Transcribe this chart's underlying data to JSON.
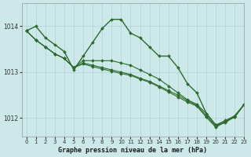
{
  "title": "Graphe pression niveau de la mer (hPa)",
  "bg_color": "#cce8e8",
  "grid_color": "#aad4d4",
  "line_color": "#2d6a2d",
  "xlim": [
    -0.5,
    23
  ],
  "ylim": [
    1011.6,
    1014.5
  ],
  "yticks": [
    1012,
    1013,
    1014
  ],
  "xticks": [
    0,
    1,
    2,
    3,
    4,
    5,
    6,
    7,
    8,
    9,
    10,
    11,
    12,
    13,
    14,
    15,
    16,
    17,
    18,
    19,
    20,
    21,
    22,
    23
  ],
  "series": [
    [
      1013.9,
      1014.0,
      1013.75,
      1013.6,
      1013.45,
      1013.05,
      1013.35,
      1013.65,
      1013.95,
      1014.15,
      1014.15,
      1013.85,
      1013.75,
      1013.55,
      1013.35,
      1013.35,
      1013.1,
      1012.75,
      1012.55,
      1012.1,
      1011.85,
      1011.9,
      1012.05,
      1012.3
    ],
    [
      1013.9,
      1013.7,
      1013.55,
      1013.4,
      1013.3,
      1013.1,
      1013.25,
      1013.25,
      1013.25,
      1013.25,
      1013.2,
      1013.15,
      1013.05,
      1012.95,
      1012.85,
      1012.7,
      1012.55,
      1012.4,
      1012.3,
      1012.1,
      1011.85,
      1011.95,
      1012.05,
      1012.3
    ],
    [
      1013.9,
      1013.7,
      1013.55,
      1013.4,
      1013.3,
      1013.1,
      1013.2,
      1013.15,
      1013.1,
      1013.05,
      1013.0,
      1012.95,
      1012.87,
      1012.8,
      1012.7,
      1012.6,
      1012.5,
      1012.38,
      1012.28,
      1012.05,
      1011.82,
      1011.93,
      1012.03,
      1012.3
    ],
    [
      1013.9,
      1013.7,
      1013.55,
      1013.4,
      1013.3,
      1013.1,
      1013.18,
      1013.12,
      1013.07,
      1013.02,
      1012.97,
      1012.93,
      1012.85,
      1012.78,
      1012.68,
      1012.57,
      1012.46,
      1012.35,
      1012.26,
      1012.02,
      1011.8,
      1011.92,
      1012.02,
      1012.3
    ]
  ]
}
